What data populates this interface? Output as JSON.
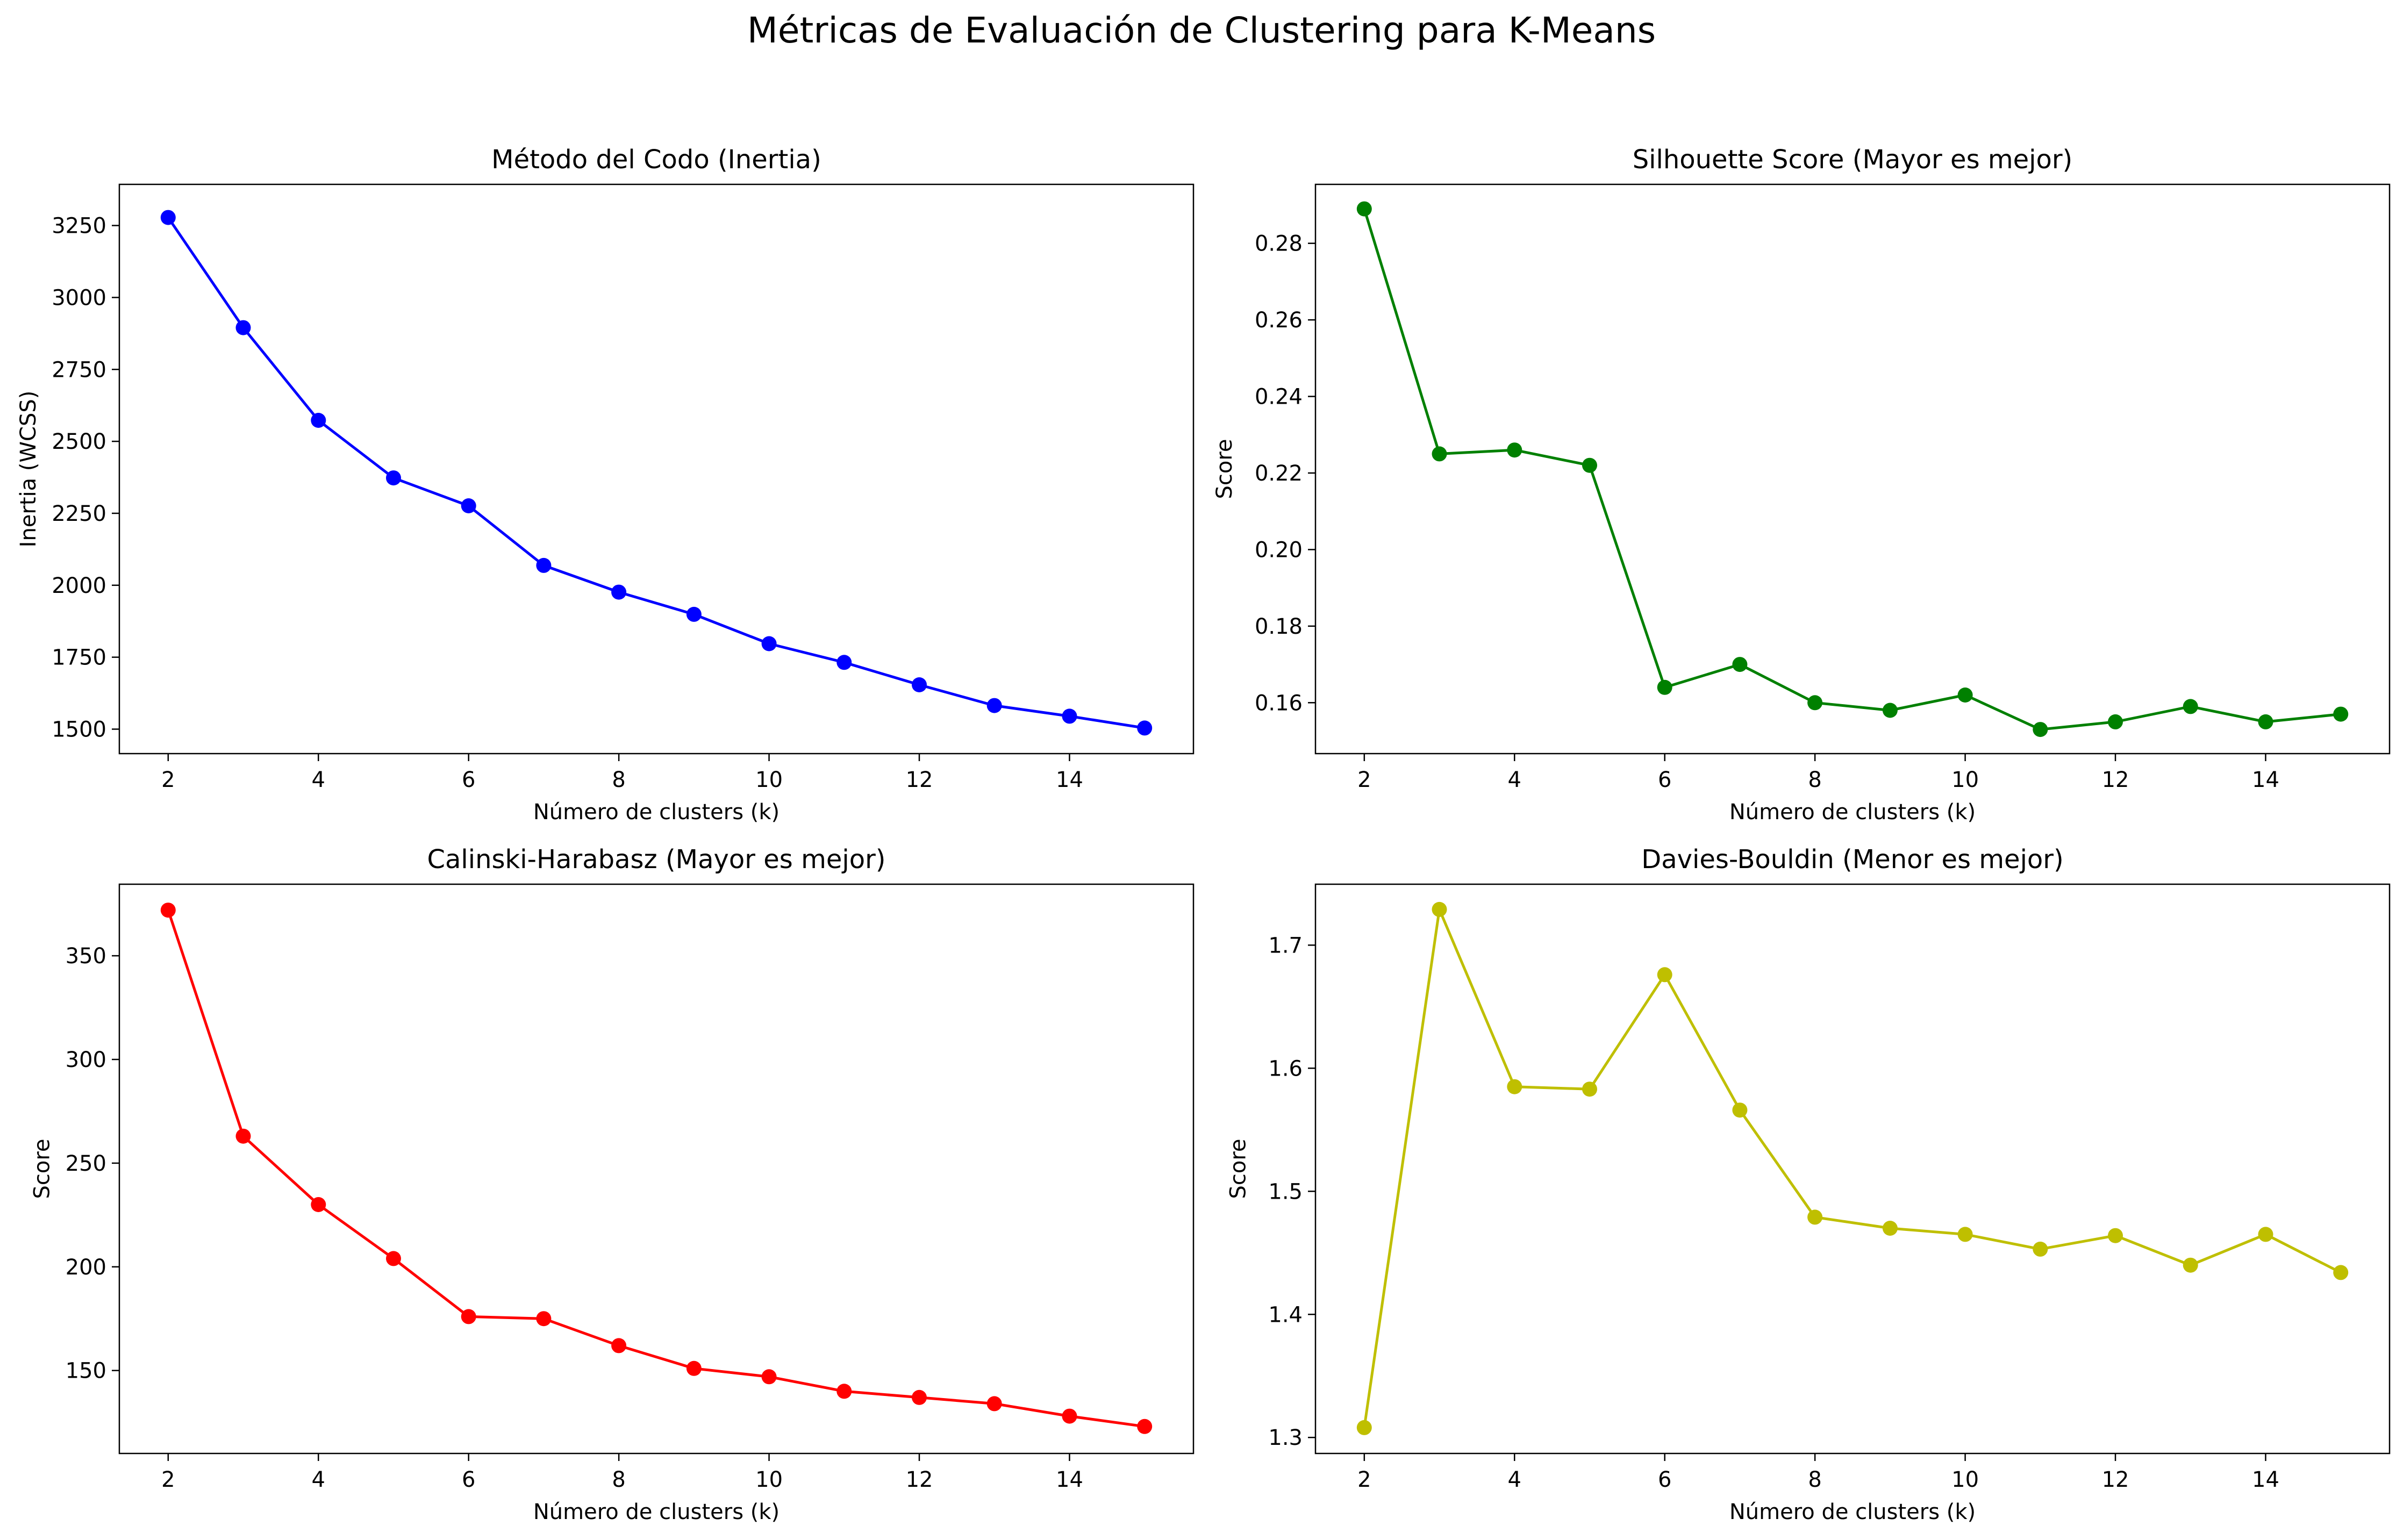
{
  "suptitle": "Métricas de Evaluación de Clustering para K-Means",
  "chart_data": [
    {
      "type": "line",
      "title": "Método del Codo (Inertia)",
      "xlabel": "Número de clusters (k)",
      "ylabel": "Inertia (WCSS)",
      "x": [
        2,
        3,
        4,
        5,
        6,
        7,
        8,
        9,
        10,
        11,
        12,
        13,
        14,
        15
      ],
      "series": [
        {
          "values": [
            3278,
            2895,
            2573,
            2373,
            2276,
            2069,
            1976,
            1899,
            1797,
            1732,
            1654,
            1582,
            1545,
            1504
          ]
        }
      ],
      "color": "#0000ff",
      "xlim": [
        1.35,
        15.65
      ],
      "ylim": [
        1415,
        3393
      ],
      "xticks": [
        2,
        4,
        6,
        8,
        10,
        12,
        14
      ],
      "xtick_labels": [
        "2",
        "4",
        "6",
        "8",
        "10",
        "12",
        "14"
      ],
      "yticks": [
        1500,
        1750,
        2000,
        2250,
        2500,
        2750,
        3000,
        3250
      ],
      "ytick_labels": [
        "1500",
        "1750",
        "2000",
        "2250",
        "2500",
        "2750",
        "3000",
        "3250"
      ],
      "grid": false
    },
    {
      "type": "line",
      "title": "Silhouette Score (Mayor es mejor)",
      "xlabel": "Número de clusters (k)",
      "ylabel": "Score",
      "x": [
        2,
        3,
        4,
        5,
        6,
        7,
        8,
        9,
        10,
        11,
        12,
        13,
        14,
        15
      ],
      "series": [
        {
          "values": [
            0.289,
            0.225,
            0.226,
            0.222,
            0.164,
            0.17,
            0.16,
            0.158,
            0.162,
            0.153,
            0.155,
            0.159,
            0.155,
            0.157
          ]
        }
      ],
      "color": "#008000",
      "xlim": [
        1.35,
        15.65
      ],
      "ylim": [
        0.1467,
        0.2954
      ],
      "xticks": [
        2,
        4,
        6,
        8,
        10,
        12,
        14
      ],
      "xtick_labels": [
        "2",
        "4",
        "6",
        "8",
        "10",
        "12",
        "14"
      ],
      "yticks": [
        0.16,
        0.18,
        0.2,
        0.22,
        0.24,
        0.26,
        0.28
      ],
      "ytick_labels": [
        "0.16",
        "0.18",
        "0.20",
        "0.22",
        "0.24",
        "0.26",
        "0.28"
      ],
      "grid": false
    },
    {
      "type": "line",
      "title": "Calinski-Harabasz (Mayor es mejor)",
      "xlabel": "Número de clusters (k)",
      "ylabel": "Score",
      "x": [
        2,
        3,
        4,
        5,
        6,
        7,
        8,
        9,
        10,
        11,
        12,
        13,
        14,
        15
      ],
      "series": [
        {
          "values": [
            372,
            263,
            230,
            204,
            176,
            175,
            162,
            151,
            147,
            140,
            137,
            134,
            128,
            123
          ]
        }
      ],
      "color": "#ff0000",
      "xlim": [
        1.35,
        15.65
      ],
      "ylim": [
        110,
        384.5
      ],
      "xticks": [
        2,
        4,
        6,
        8,
        10,
        12,
        14
      ],
      "xtick_labels": [
        "2",
        "4",
        "6",
        "8",
        "10",
        "12",
        "14"
      ],
      "yticks": [
        150,
        200,
        250,
        300,
        350
      ],
      "ytick_labels": [
        "150",
        "200",
        "250",
        "300",
        "350"
      ],
      "grid": false
    },
    {
      "type": "line",
      "title": "Davies-Bouldin (Menor es mejor)",
      "xlabel": "Número de clusters (k)",
      "ylabel": "Score",
      "x": [
        2,
        3,
        4,
        5,
        6,
        7,
        8,
        9,
        10,
        11,
        12,
        13,
        14,
        15
      ],
      "series": [
        {
          "values": [
            1.308,
            1.729,
            1.585,
            1.583,
            1.676,
            1.566,
            1.479,
            1.47,
            1.465,
            1.453,
            1.464,
            1.44,
            1.465,
            1.434
          ]
        }
      ],
      "color": "#bfbf00",
      "xlim": [
        1.35,
        15.65
      ],
      "ylim": [
        1.287,
        1.7495
      ],
      "xticks": [
        2,
        4,
        6,
        8,
        10,
        12,
        14
      ],
      "xtick_labels": [
        "2",
        "4",
        "6",
        "8",
        "10",
        "12",
        "14"
      ],
      "yticks": [
        1.3,
        1.4,
        1.5,
        1.6,
        1.7
      ],
      "ytick_labels": [
        "1.3",
        "1.4",
        "1.5",
        "1.6",
        "1.7"
      ],
      "grid": false
    }
  ]
}
